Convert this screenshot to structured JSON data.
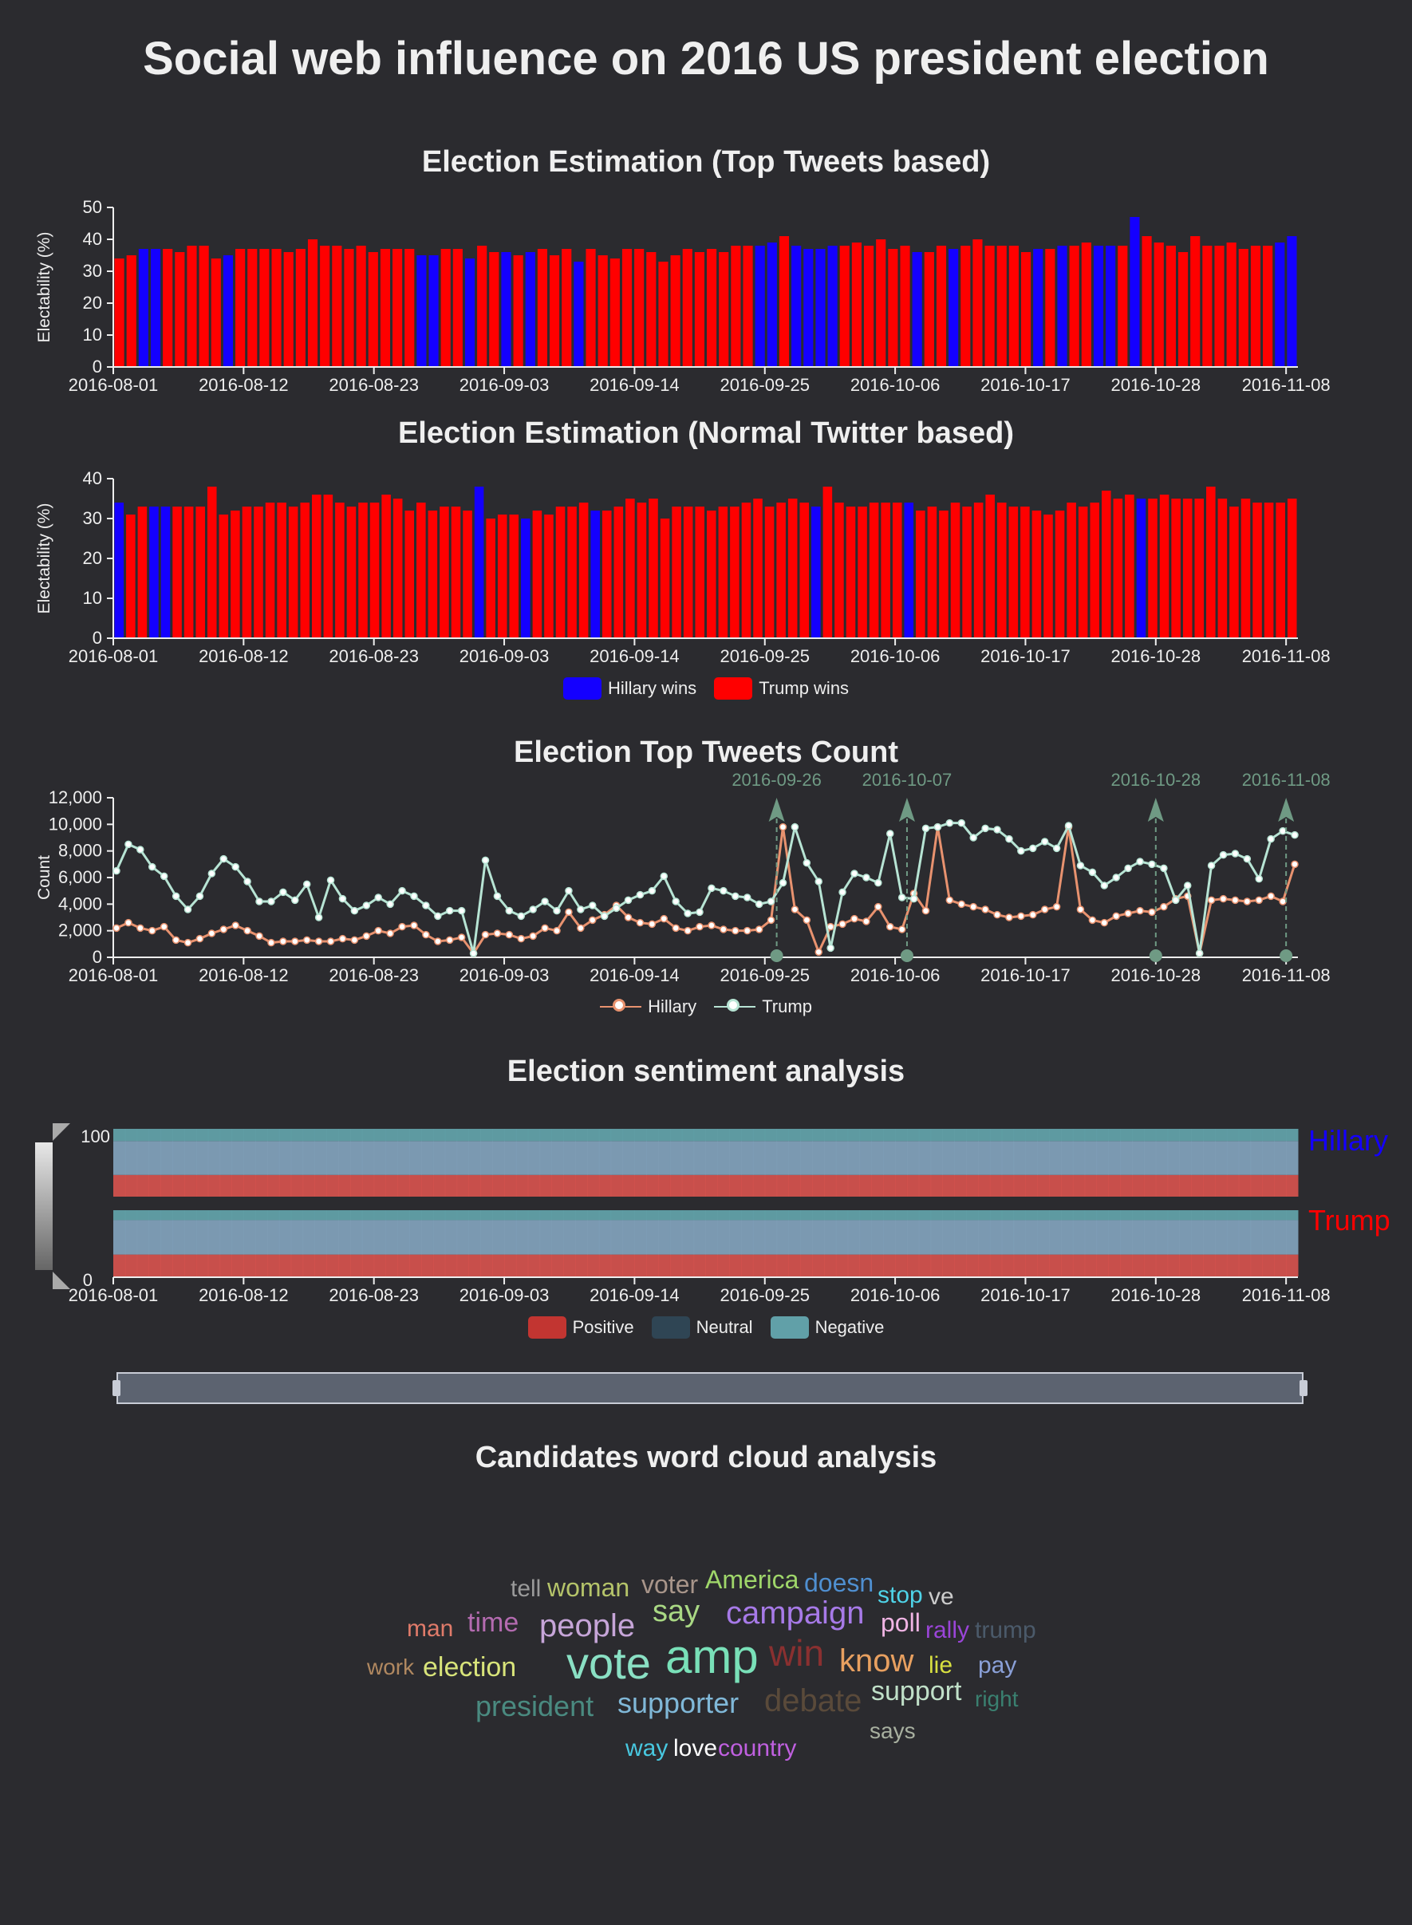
{
  "page": {
    "title": "Social web influence on 2016 US president election",
    "wordcloud_title": "Candidates word cloud analysis"
  },
  "dates": [
    "2016-08-01",
    "2016-08-12",
    "2016-08-23",
    "2016-09-03",
    "2016-09-14",
    "2016-09-25",
    "2016-10-06",
    "2016-10-17",
    "2016-10-28",
    "2016-11-08"
  ],
  "colors": {
    "hillary": "#1400ff",
    "trump": "#ff0000",
    "hillary_line": "#e8926f",
    "trump_line": "#b7e4d4",
    "positive": "#c23531",
    "neutral": "#2f4554",
    "negative": "#61a0a8"
  },
  "chart_data": [
    {
      "id": "top-tweets-estimation",
      "type": "bar",
      "title": "Election Estimation (Top Tweets based)",
      "ylabel": "Electability (%)",
      "ylim": [
        0,
        50
      ],
      "yticks": [
        0,
        10,
        20,
        30,
        40,
        50
      ],
      "x_start": "2016-08-01",
      "x_end": "2016-11-08",
      "values": [
        34,
        35,
        37,
        37,
        37,
        36,
        38,
        38,
        34,
        35,
        37,
        37,
        37,
        37,
        36,
        37,
        40,
        38,
        38,
        37,
        38,
        36,
        37,
        37,
        37,
        35,
        35,
        37,
        37,
        34,
        38,
        36,
        36,
        35,
        36,
        37,
        35,
        37,
        33,
        37,
        35,
        34,
        37,
        37,
        36,
        33,
        35,
        37,
        36,
        37,
        36,
        38,
        38,
        38,
        39,
        41,
        38,
        37,
        37,
        38,
        38,
        39,
        38,
        40,
        37,
        38,
        36,
        36,
        38,
        37,
        38,
        40,
        38,
        38,
        38,
        36,
        37,
        37,
        38,
        38,
        39,
        38,
        38,
        38,
        47,
        41,
        39,
        38,
        36,
        41,
        38,
        38,
        39,
        37,
        38,
        38,
        39,
        41
      ],
      "winner": "TTHHTTTTTHTTTTTTTTTTTTTTTHHTTHTTHTHTTTHTTTTTTTTTTTTTTHHTHHHHTTTTTTHTTHTTTTTTHTHTTHHTHTTTTTTTTTTTHH",
      "legend": [
        "Hillary wins",
        "Trump wins"
      ]
    },
    {
      "id": "normal-twitter-estimation",
      "type": "bar",
      "title": "Election Estimation (Normal Twitter based)",
      "ylabel": "Electability (%)",
      "ylim": [
        0,
        40
      ],
      "yticks": [
        0,
        10,
        20,
        30,
        40
      ],
      "x_start": "2016-08-01",
      "x_end": "2016-11-08",
      "values": [
        34,
        31,
        33,
        33,
        33,
        33,
        33,
        33,
        38,
        31,
        32,
        33,
        33,
        34,
        34,
        33,
        34,
        36,
        36,
        34,
        33,
        34,
        34,
        36,
        35,
        32,
        34,
        32,
        33,
        33,
        32,
        38,
        30,
        31,
        31,
        30,
        32,
        31,
        33,
        33,
        34,
        32,
        32,
        33,
        35,
        34,
        35,
        30,
        33,
        33,
        33,
        32,
        33,
        33,
        34,
        35,
        33,
        34,
        35,
        34,
        33,
        38,
        34,
        33,
        33,
        34,
        34,
        34,
        34,
        32,
        33,
        32,
        34,
        33,
        34,
        36,
        34,
        33,
        33,
        32,
        31,
        32,
        34,
        33,
        34,
        37,
        35,
        36,
        35,
        35,
        36,
        35,
        35,
        35,
        38,
        35,
        33,
        35,
        34,
        34,
        34,
        35
      ],
      "winner": "HTTHHTTTTTTTTTTTTTTTTTTTTTTTTTTHTTTHTTTTTHTTTTTTTTTTTTTTTTTTHTTTTTTTHTTTTTTTTTTTTTTTTTTTHTTTTTTTTTTTT",
      "legend": [
        "Hillary wins",
        "Trump wins"
      ]
    },
    {
      "id": "top-tweets-count",
      "type": "line",
      "title": "Election Top Tweets Count",
      "ylabel": "Count",
      "ylim": [
        0,
        12000
      ],
      "yticks": [
        0,
        2000,
        4000,
        6000,
        8000,
        10000,
        12000
      ],
      "ytick_labels": [
        "0",
        "2,000",
        "4,000",
        "6,000",
        "8,000",
        "10,000",
        "12,000"
      ],
      "x_start": "2016-08-01",
      "x_end": "2016-11-08",
      "series": [
        {
          "name": "Hillary",
          "values": [
            2200,
            2600,
            2200,
            2000,
            2300,
            1300,
            1100,
            1400,
            1800,
            2100,
            2400,
            2000,
            1600,
            1100,
            1200,
            1200,
            1300,
            1200,
            1200,
            1400,
            1300,
            1600,
            2000,
            1800,
            2300,
            2400,
            1700,
            1200,
            1300,
            1500,
            300,
            1700,
            1800,
            1700,
            1400,
            1600,
            2200,
            2000,
            3400,
            2200,
            2800,
            3200,
            3900,
            3000,
            2600,
            2500,
            2900,
            2200,
            2000,
            2300,
            2400,
            2100,
            2000,
            2000,
            2100,
            2800,
            9800,
            3600,
            2800,
            400,
            2300,
            2500,
            2900,
            2700,
            3800,
            2300,
            2100,
            4800,
            3500,
            9800,
            4300,
            4000,
            3800,
            3600,
            3200,
            3000,
            3100,
            3200,
            3600,
            3800,
            9800,
            3600,
            2800,
            2600,
            3100,
            3300,
            3500,
            3400,
            3800,
            4400,
            4600,
            300,
            4300,
            4400,
            4300,
            4200,
            4300,
            4600,
            4200,
            7000
          ]
        },
        {
          "name": "Trump",
          "values": [
            6500,
            8500,
            8100,
            6800,
            6100,
            4600,
            3600,
            4600,
            6300,
            7400,
            6800,
            5700,
            4200,
            4200,
            4900,
            4300,
            5500,
            3000,
            5800,
            4400,
            3500,
            3900,
            4500,
            4000,
            5000,
            4600,
            3900,
            3100,
            3500,
            3500,
            300,
            7300,
            4600,
            3500,
            3100,
            3600,
            4200,
            3500,
            5000,
            3600,
            3900,
            3100,
            3700,
            4300,
            4700,
            5000,
            6100,
            4200,
            3300,
            3400,
            5200,
            5000,
            4600,
            4500,
            4000,
            4200,
            5600,
            9800,
            7100,
            5700,
            700,
            4900,
            6300,
            6000,
            5600,
            9300,
            4500,
            4400,
            9700,
            9800,
            10100,
            10100,
            9000,
            9700,
            9600,
            8900,
            8000,
            8200,
            8700,
            8200,
            9900,
            6900,
            6400,
            5400,
            6000,
            6700,
            7200,
            7000,
            6700,
            4300,
            5400,
            300,
            6900,
            7700,
            7800,
            7400,
            5900,
            8900,
            9500,
            9200
          ]
        }
      ],
      "markers": [
        "2016-09-26",
        "2016-10-07",
        "2016-10-28",
        "2016-11-08"
      ],
      "legend": [
        "Hillary",
        "Trump"
      ]
    },
    {
      "id": "sentiment-analysis",
      "type": "bar",
      "title": "Election sentiment analysis",
      "ylim": [
        0,
        100
      ],
      "yticks": [
        0,
        100
      ],
      "stacked": true,
      "x_start": "2016-08-01",
      "x_end": "2016-11-08",
      "series": [
        {
          "name": "Hillary",
          "positive": 32,
          "neutral": 50,
          "negative": 18
        },
        {
          "name": "Trump",
          "positive": 33,
          "neutral": 52,
          "negative": 15
        }
      ],
      "legend": [
        "Positive",
        "Neutral",
        "Negative"
      ]
    }
  ],
  "wordcloud": [
    {
      "text": "tell",
      "color": "#9a9a9a",
      "size": 30
    },
    {
      "text": "woman",
      "color": "#b5c46a",
      "size": 32
    },
    {
      "text": "voter",
      "color": "#a8958a",
      "size": 32
    },
    {
      "text": "America",
      "color": "#9fd66a",
      "size": 32
    },
    {
      "text": "doesn",
      "color": "#4f8fd0",
      "size": 32
    },
    {
      "text": "stop",
      "color": "#4fd3e8",
      "size": 30
    },
    {
      "text": "ve",
      "color": "#cccccc",
      "size": 30
    },
    {
      "text": "man",
      "color": "#e07b6a",
      "size": 30
    },
    {
      "text": "time",
      "color": "#b46bb0",
      "size": 34
    },
    {
      "text": "people",
      "color": "#c6a5d8",
      "size": 40
    },
    {
      "text": "say",
      "color": "#a9d884",
      "size": 38
    },
    {
      "text": "campaign",
      "color": "#a77ae8",
      "size": 40
    },
    {
      "text": "poll",
      "color": "#f0b4e4",
      "size": 32
    },
    {
      "text": "rally",
      "color": "#9a45d8",
      "size": 30
    },
    {
      "text": "trump",
      "color": "#4b5a6a",
      "size": 30
    },
    {
      "text": "work",
      "color": "#b08860",
      "size": 28
    },
    {
      "text": "election",
      "color": "#d8e47a",
      "size": 34
    },
    {
      "text": "vote",
      "color": "#8ae0c4",
      "size": 56
    },
    {
      "text": "amp",
      "color": "#79e0b8",
      "size": 60
    },
    {
      "text": "win",
      "color": "#8a3030",
      "size": 46
    },
    {
      "text": "know",
      "color": "#e8a060",
      "size": 40
    },
    {
      "text": "lie",
      "color": "#d8e040",
      "size": 30
    },
    {
      "text": "pay",
      "color": "#8aa0d8",
      "size": 30
    },
    {
      "text": "president",
      "color": "#4a8a80",
      "size": 36
    },
    {
      "text": "supporter",
      "color": "#80b8d8",
      "size": 36
    },
    {
      "text": "debate",
      "color": "#5a4a3a",
      "size": 40
    },
    {
      "text": "support",
      "color": "#c0e0c8",
      "size": 34
    },
    {
      "text": "right",
      "color": "#3a8070",
      "size": 28
    },
    {
      "text": "says",
      "color": "#a8b0a0",
      "size": 28
    },
    {
      "text": "way",
      "color": "#48c8e0",
      "size": 30
    },
    {
      "text": "love",
      "color": "#ffffff",
      "size": 30
    },
    {
      "text": "country",
      "color": "#c060e0",
      "size": 30
    }
  ]
}
